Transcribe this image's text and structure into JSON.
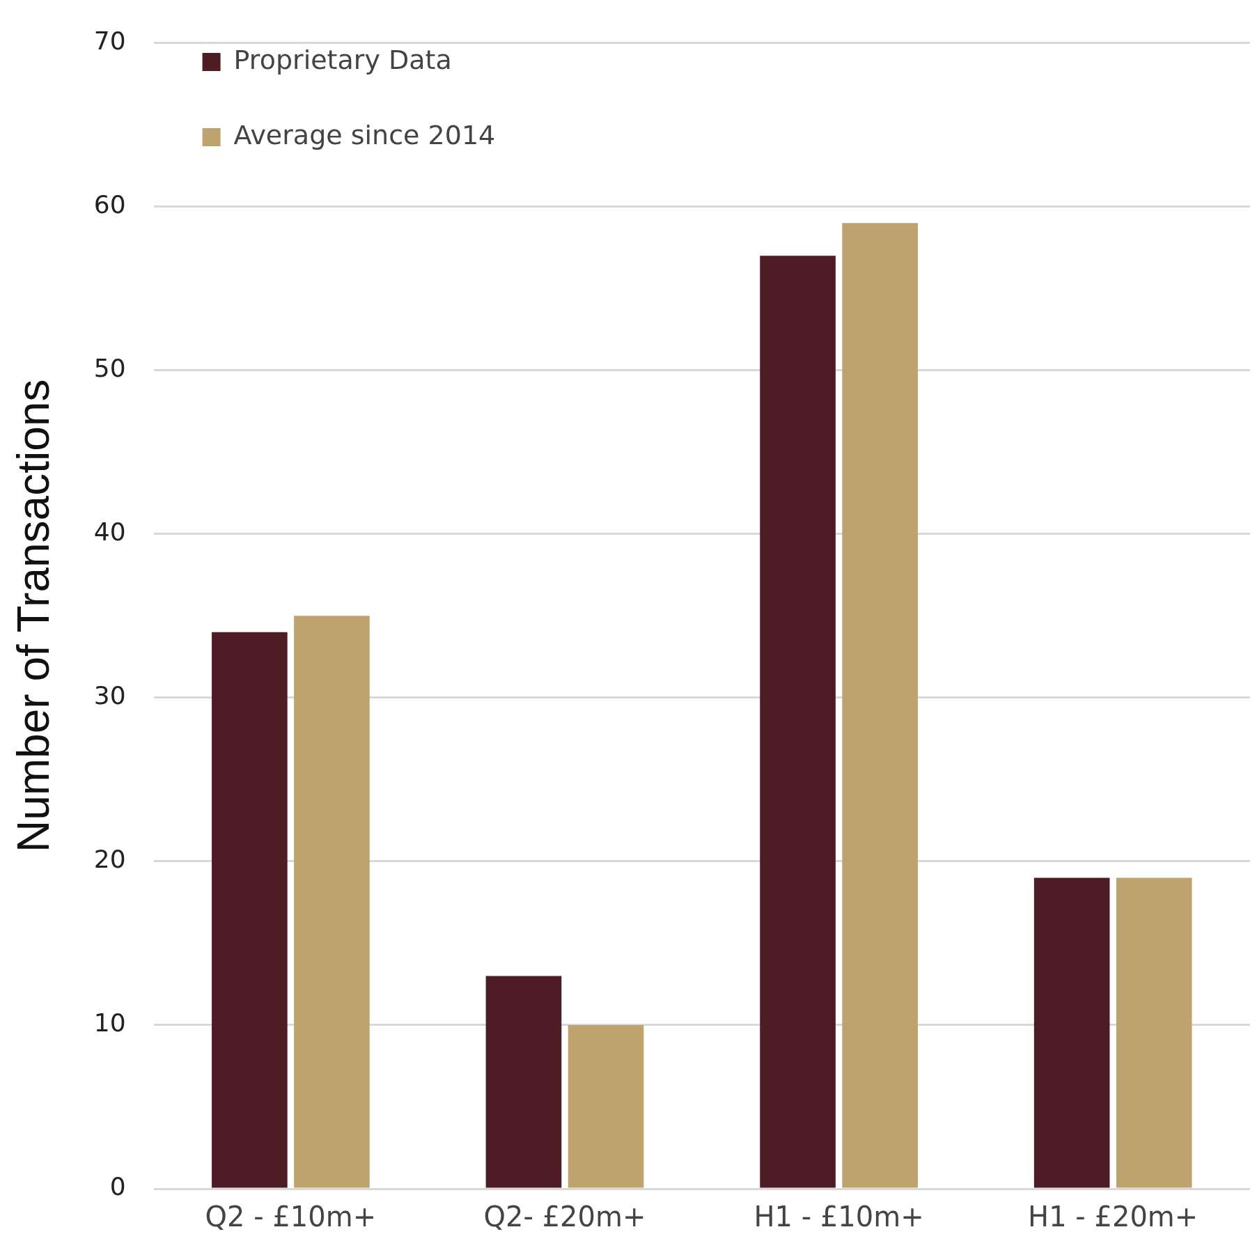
{
  "chart_data": {
    "type": "bar",
    "ylabel": "Number of Transactions",
    "categories": [
      "Q2 - £10m+",
      "Q2- £20m+",
      "H1 - £10m+",
      "H1 - £20m+"
    ],
    "series": [
      {
        "name": "Proprietary Data",
        "color": "#4e1c24",
        "values": [
          34,
          13,
          57,
          19
        ]
      },
      {
        "name": "Average since 2014",
        "color": "#bea36f",
        "values": [
          35,
          10,
          59,
          19
        ]
      }
    ],
    "ylim": [
      0,
      70
    ],
    "yticks": [
      0,
      10,
      20,
      30,
      40,
      50,
      60,
      70
    ],
    "grid": "y",
    "legend": "top left"
  }
}
